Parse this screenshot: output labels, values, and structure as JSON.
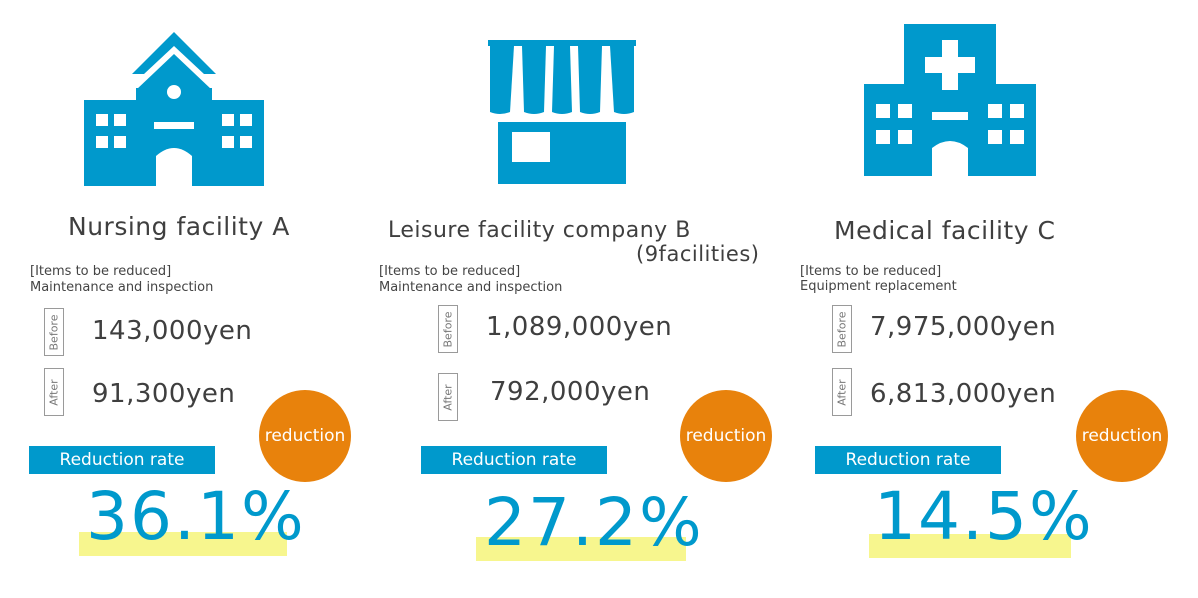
{
  "facilities": [
    {
      "title": "Nursing facility A",
      "subtitle": "",
      "items_header": "[Items to be reduced]",
      "items_value": "Maintenance and inspection",
      "before_label": "Before",
      "before_amount": "143,000yen",
      "after_label": "After",
      "after_amount": "91,300yen",
      "badge": "reduction",
      "rate_label": "Reduction rate",
      "rate": "36.1%",
      "icon": "school-building-icon"
    },
    {
      "title": "Leisure facility company B",
      "subtitle": "(9facilities)",
      "items_header": "[Items to be reduced]",
      "items_value": "Maintenance and inspection",
      "before_label": "Before",
      "before_amount": "1,089,000yen",
      "after_label": "After",
      "after_amount": "792,000yen",
      "badge": "reduction",
      "rate_label": "Reduction rate",
      "rate": "27.2%",
      "icon": "storefront-icon"
    },
    {
      "title": "Medical facility C",
      "subtitle": "",
      "items_header": "[Items to be reduced]",
      "items_value": "Equipment replacement",
      "before_label": "Before",
      "before_amount": "7,975,000yen",
      "after_label": "After",
      "after_amount": "6,813,000yen",
      "badge": "reduction",
      "rate_label": "Reduction rate",
      "rate": "14.5%",
      "icon": "hospital-icon"
    }
  ],
  "colors": {
    "icon_blue": "#0099cc",
    "badge_orange": "#e8820c",
    "highlight_yellow": "#f6f57a"
  }
}
